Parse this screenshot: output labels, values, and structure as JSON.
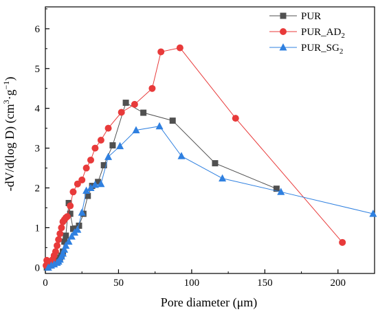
{
  "chart_data": {
    "type": "line",
    "xlabel": "Pore diameter (μm)",
    "ylabel": {
      "text": "-dV/d(log D) (cm³·g⁻¹)",
      "main": "-dV/d(log D) (cm",
      "sup1": "3",
      "mid": "·g",
      "sup2": "−1",
      "end": ")"
    },
    "xlim": [
      0,
      225
    ],
    "ylim": [
      -0.15,
      6.55
    ],
    "xticks": [
      0,
      50,
      100,
      150,
      200
    ],
    "yticks": [
      0,
      1,
      2,
      3,
      4,
      5,
      6
    ],
    "grid": false,
    "legend_position": "top-right",
    "series": [
      {
        "name": "PUR",
        "legend": {
          "main": "PUR",
          "sub": ""
        },
        "color": "#505050",
        "marker": "square",
        "x": [
          1,
          3,
          5,
          7,
          9,
          10,
          11,
          12,
          13,
          14,
          16,
          17,
          19,
          21,
          23,
          26,
          29,
          32,
          36,
          40,
          46,
          55,
          67,
          87,
          116,
          158
        ],
        "y": [
          0.0,
          0.05,
          0.1,
          0.15,
          0.2,
          0.25,
          0.3,
          0.4,
          0.65,
          0.8,
          1.62,
          1.35,
          0.97,
          0.98,
          1.05,
          1.35,
          1.8,
          2.05,
          2.15,
          2.57,
          3.07,
          4.14,
          3.89,
          3.69,
          2.62,
          1.98
        ]
      },
      {
        "name": "PUR_AD2",
        "legend": {
          "main": "PUR_AD",
          "sub": "2"
        },
        "color": "#e83a3a",
        "marker": "circle",
        "x": [
          0.5,
          1,
          2,
          3,
          4,
          5,
          6,
          7,
          8,
          9,
          10,
          11,
          12,
          13,
          14,
          15,
          17,
          19,
          22,
          25,
          28,
          31,
          34,
          38,
          43,
          52,
          61,
          73,
          79,
          92,
          130,
          203
        ],
        "y": [
          0.05,
          0.18,
          0.05,
          0.1,
          0.15,
          0.2,
          0.3,
          0.4,
          0.55,
          0.7,
          0.85,
          1.0,
          1.15,
          1.2,
          1.25,
          1.28,
          1.55,
          1.9,
          2.1,
          2.2,
          2.5,
          2.7,
          3.0,
          3.2,
          3.5,
          3.9,
          4.1,
          4.5,
          5.42,
          5.52,
          3.75,
          0.63
        ]
      },
      {
        "name": "PUR_SG2",
        "legend": {
          "main": "PUR_SG",
          "sub": "2"
        },
        "color": "#2f80e0",
        "marker": "triangle",
        "x": [
          2,
          4,
          6,
          8,
          9,
          10,
          11,
          12,
          13,
          14,
          16,
          18,
          20,
          22,
          25,
          28,
          31,
          34,
          38,
          43,
          51,
          62,
          78,
          93,
          121,
          161,
          224
        ],
        "y": [
          0.0,
          0.05,
          0.08,
          0.12,
          0.15,
          0.2,
          0.28,
          0.35,
          0.45,
          0.55,
          0.65,
          0.78,
          0.88,
          0.95,
          1.38,
          1.93,
          2.0,
          2.08,
          2.1,
          2.78,
          3.05,
          3.45,
          3.55,
          2.8,
          2.24,
          1.9,
          1.35
        ]
      }
    ]
  }
}
